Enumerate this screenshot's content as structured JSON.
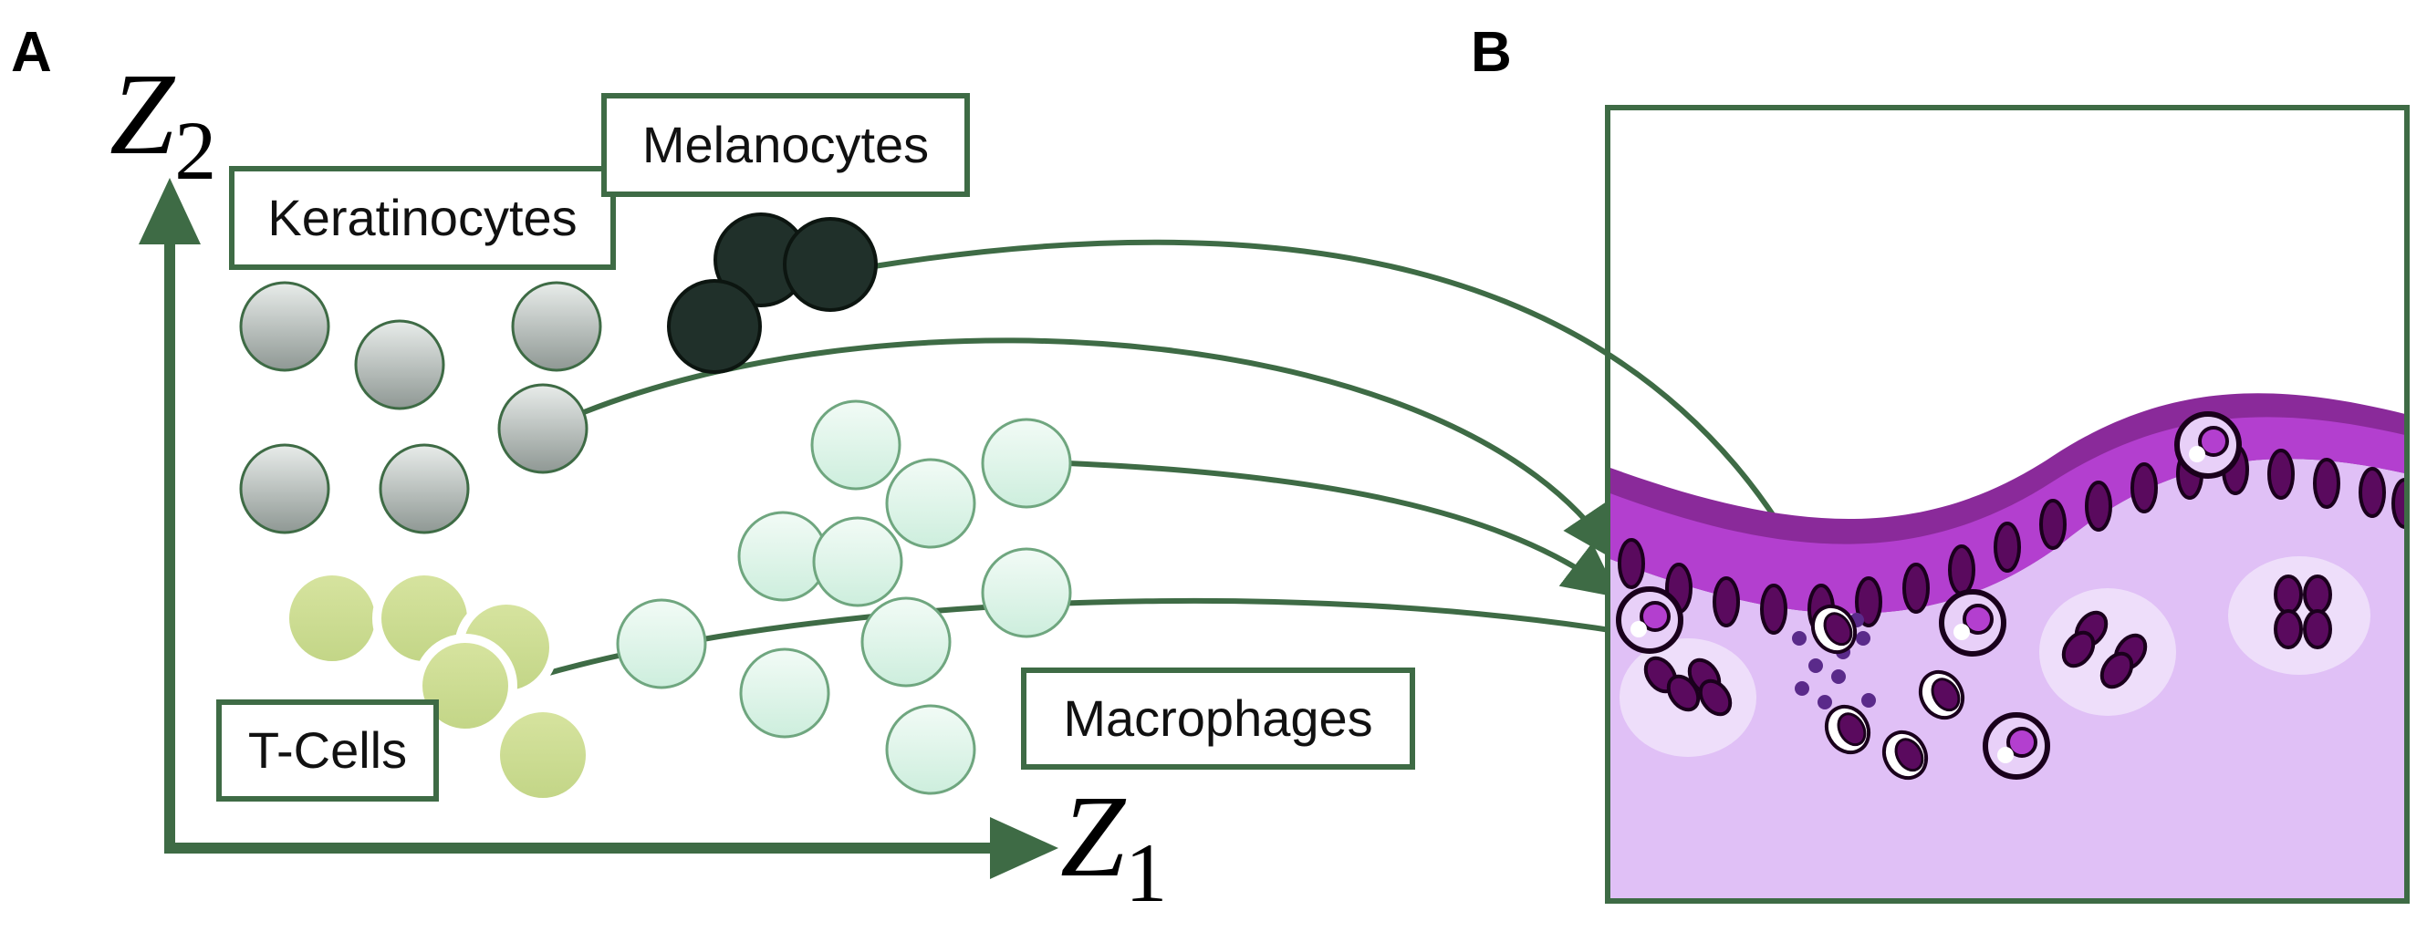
{
  "panels": {
    "a": {
      "letter": "A"
    },
    "b": {
      "letter": "B"
    }
  },
  "axes": {
    "x": {
      "symbol": "Z",
      "subscript": "1"
    },
    "y": {
      "symbol": "Z",
      "subscript": "2"
    }
  },
  "cell_types": {
    "keratinocytes": {
      "label": "Keratinocytes",
      "color": "#8f9894"
    },
    "melanocytes": {
      "label": "Melanocytes",
      "color": "#20302a"
    },
    "t_cells": {
      "label": "T-Cells",
      "color": "#c6d88a"
    },
    "macrophages": {
      "label": "Macrophages",
      "color": "#d4efe0"
    }
  },
  "colors": {
    "accent_green": "#3e6b45",
    "epidermis_dark": "#8a2a9a",
    "epidermis_light": "#b33fcf",
    "dermis": "#e0c0f6",
    "nucleus": "#5a0a5e"
  }
}
